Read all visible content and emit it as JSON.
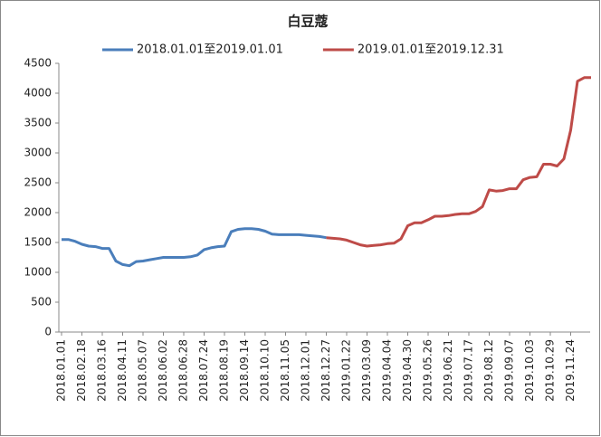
{
  "chart_data": {
    "type": "line",
    "title": "白豆蔻",
    "categories": [
      "2018.01.01",
      null,
      null,
      "2018.02.18",
      null,
      null,
      "2018.03.16",
      null,
      null,
      "2018.04.11",
      null,
      null,
      "2018.05.07",
      null,
      null,
      "2018.06.02",
      null,
      null,
      "2018.06.28",
      null,
      null,
      "2018.07.24",
      null,
      null,
      "2018.08.19",
      null,
      null,
      "2018.09.14",
      null,
      null,
      "2018.10.10",
      null,
      null,
      "2018.11.05",
      null,
      null,
      "2018.12.01",
      null,
      null,
      "2018.12.27",
      null,
      null,
      "2019.01.22",
      null,
      null,
      "2019.03.09",
      null,
      null,
      "2019.04.04",
      null,
      null,
      "2019.04.30",
      null,
      null,
      "2019.05.26",
      null,
      null,
      "2019.06.21",
      null,
      null,
      "2019.07.17",
      null,
      null,
      "2019.08.12",
      null,
      null,
      "2019.09.07",
      null,
      null,
      "2019.10.03",
      null,
      null,
      "2019.10.29",
      null,
      null,
      "2019.11.24",
      null,
      null,
      null
    ],
    "series": [
      {
        "name": "2018.01.01至2019.01.01",
        "color": "#4a7ebb",
        "values": [
          1550,
          1550,
          1520,
          1470,
          1440,
          1430,
          1400,
          1400,
          1190,
          1130,
          1110,
          1180,
          1190,
          1210,
          1230,
          1250,
          1250,
          1250,
          1250,
          1260,
          1290,
          1380,
          1410,
          1430,
          1440,
          1680,
          1720,
          1730,
          1730,
          1720,
          1690,
          1640,
          1630,
          1630,
          1630,
          1630,
          1620,
          1610,
          1600,
          1580,
          null,
          null,
          null,
          null,
          null,
          null,
          null,
          null,
          null,
          null,
          null,
          null,
          null,
          null,
          null,
          null,
          null,
          null,
          null,
          null,
          null,
          null,
          null,
          null,
          null,
          null,
          null,
          null,
          null,
          null,
          null,
          null,
          null,
          null,
          null,
          null,
          null,
          null,
          null
        ]
      },
      {
        "name": "2019.01.01至2019.12.31",
        "color": "#be4b48",
        "values": [
          null,
          null,
          null,
          null,
          null,
          null,
          null,
          null,
          null,
          null,
          null,
          null,
          null,
          null,
          null,
          null,
          null,
          null,
          null,
          null,
          null,
          null,
          null,
          null,
          null,
          null,
          null,
          null,
          null,
          null,
          null,
          null,
          null,
          null,
          null,
          null,
          null,
          null,
          null,
          1580,
          1570,
          1560,
          1540,
          1500,
          1460,
          1440,
          1450,
          1460,
          1480,
          1490,
          1560,
          1780,
          1830,
          1830,
          1880,
          1940,
          1940,
          1950,
          1970,
          1980,
          1980,
          2020,
          2100,
          2380,
          2360,
          2370,
          2400,
          2400,
          2550,
          2590,
          2600,
          2810,
          2810,
          2780,
          2900,
          3380,
          4200,
          4260,
          4260
        ]
      }
    ],
    "ylim": [
      0,
      4500
    ],
    "yticks": [
      0,
      500,
      1000,
      1500,
      2000,
      2500,
      3000,
      3500,
      4000,
      4500
    ],
    "grid": false,
    "legend": "top"
  }
}
